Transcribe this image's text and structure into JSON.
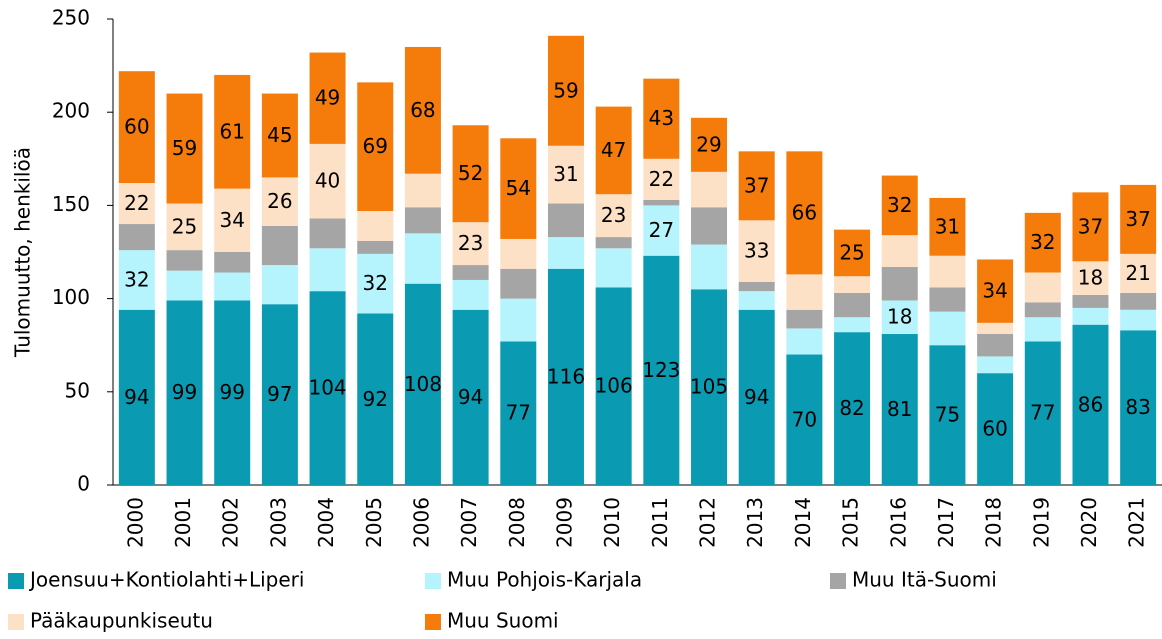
{
  "chart_data": {
    "type": "stacked_bar",
    "y_label": "Tulomuutto, henkilöä",
    "categories": [
      "2000",
      "2001",
      "2002",
      "2003",
      "2004",
      "2005",
      "2006",
      "2007",
      "2008",
      "2009",
      "2010",
      "2011",
      "2012",
      "2013",
      "2014",
      "2015",
      "2016",
      "2017",
      "2018",
      "2019",
      "2020",
      "2021"
    ],
    "ylim": [
      0,
      250
    ],
    "yticks": [
      0,
      50,
      100,
      150,
      200,
      250
    ],
    "series": [
      {
        "name": "Joensuu+Kontiolahti+Liperi",
        "color": "#0a9bb3",
        "values": [
          94,
          99,
          99,
          97,
          104,
          92,
          108,
          94,
          77,
          116,
          106,
          123,
          105,
          94,
          70,
          82,
          81,
          75,
          60,
          77,
          86,
          83
        ],
        "value_labels": [
          94,
          99,
          99,
          97,
          104,
          92,
          108,
          94,
          77,
          116,
          106,
          123,
          105,
          94,
          70,
          82,
          81,
          75,
          60,
          77,
          86,
          83
        ]
      },
      {
        "name": "Muu Pohjois-Karjala",
        "color": "#b5f4fd",
        "values": [
          32,
          16,
          15,
          21,
          23,
          32,
          27,
          16,
          23,
          17,
          21,
          27,
          24,
          10,
          14,
          8,
          18,
          18,
          9,
          13,
          9,
          11
        ],
        "value_labels": [
          32,
          null,
          null,
          null,
          null,
          32,
          null,
          null,
          null,
          null,
          null,
          27,
          null,
          null,
          null,
          null,
          18,
          null,
          null,
          null,
          null,
          null
        ]
      },
      {
        "name": "Muu Itä-Suomi",
        "color": "#a5a5a5",
        "values": [
          14,
          11,
          11,
          21,
          16,
          7,
          14,
          8,
          16,
          18,
          6,
          3,
          20,
          5,
          10,
          13,
          18,
          13,
          12,
          8,
          7,
          9
        ]
      },
      {
        "name": "Pääkaupunkiseutu",
        "color": "#fde1c6",
        "values": [
          22,
          25,
          34,
          26,
          40,
          16,
          18,
          23,
          16,
          31,
          23,
          22,
          19,
          33,
          19,
          9,
          17,
          17,
          6,
          16,
          18,
          21
        ],
        "value_labels": [
          22,
          25,
          34,
          26,
          40,
          null,
          null,
          23,
          null,
          31,
          23,
          22,
          null,
          33,
          null,
          null,
          null,
          null,
          null,
          null,
          18,
          21
        ]
      },
      {
        "name": "Muu Suomi",
        "color": "#f57b0b",
        "values": [
          60,
          59,
          61,
          45,
          49,
          69,
          68,
          52,
          54,
          59,
          47,
          43,
          29,
          37,
          66,
          25,
          32,
          31,
          34,
          32,
          37,
          37
        ],
        "value_labels": [
          60,
          59,
          61,
          45,
          49,
          69,
          68,
          52,
          54,
          59,
          47,
          43,
          29,
          37,
          66,
          25,
          32,
          31,
          34,
          32,
          37,
          37
        ]
      }
    ]
  }
}
